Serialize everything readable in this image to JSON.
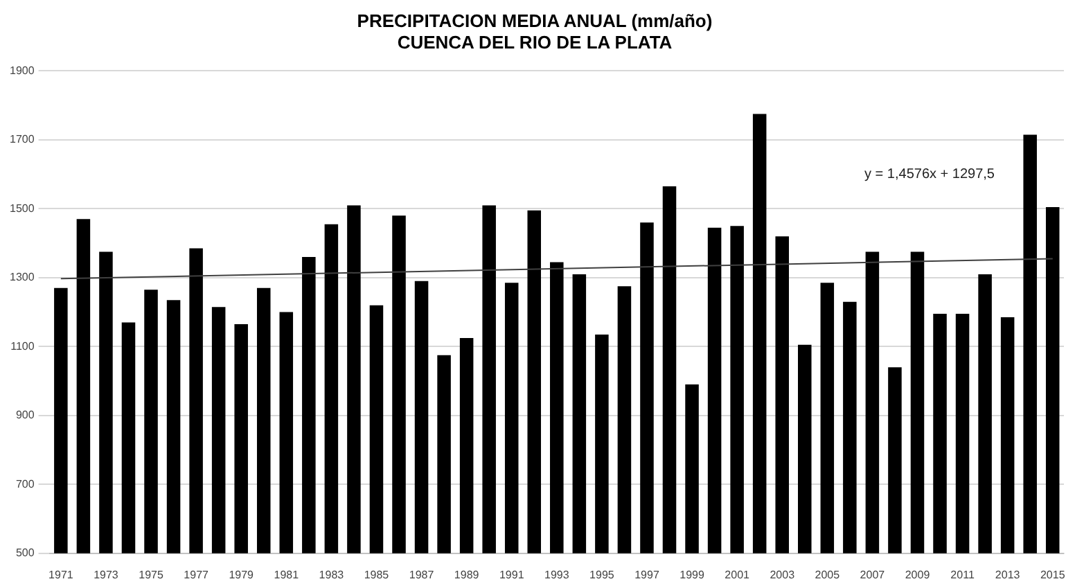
{
  "chart_data": {
    "type": "bar",
    "title": "PRECIPITACION MEDIA ANUAL (mm/año)",
    "subtitle": "CUENCA DEL RIO DE LA PLATA",
    "categories": [
      "1971",
      null,
      "1973",
      null,
      "1975",
      null,
      "1977",
      null,
      "1979",
      null,
      "1981",
      null,
      "1983",
      null,
      "1985",
      null,
      "1987",
      null,
      "1989",
      null,
      "1991",
      null,
      "1993",
      null,
      "1995",
      null,
      "1997",
      null,
      "1999",
      null,
      "2001",
      null,
      "2003",
      null,
      "2005",
      null,
      "2007",
      null,
      "2009",
      null,
      "2011",
      null,
      "2013",
      null,
      "2015"
    ],
    "series": [
      {
        "color": "#000000",
        "values": [
          1270,
          1470,
          1375,
          1170,
          1265,
          1235,
          1385,
          1215,
          1165,
          1270,
          1200,
          1360,
          1455,
          1510,
          1220,
          1480,
          1290,
          1075,
          1125,
          1510,
          1285,
          1495,
          1345,
          1310,
          1135,
          1275,
          1460,
          1565,
          990,
          1445,
          1450,
          1775,
          1420,
          1105,
          1285,
          1230,
          1375,
          1040,
          1375,
          1195,
          1195,
          1310,
          1185,
          1715,
          1505
        ]
      },
      {
        "type": "line",
        "color": "#404040",
        "values": [
          1297,
          null,
          null,
          null,
          null,
          null,
          null,
          null,
          null,
          null,
          null,
          null,
          null,
          null,
          null,
          null,
          null,
          null,
          null,
          null,
          null,
          null,
          null,
          null,
          null,
          null,
          null,
          null,
          null,
          null,
          null,
          null,
          null,
          null,
          null,
          null,
          null,
          null,
          null,
          null,
          null,
          null,
          null,
          null,
          1355
        ]
      }
    ],
    "ylim": [
      500,
      1900
    ],
    "yticks": [
      500,
      700,
      900,
      1100,
      1300,
      1500,
      1700,
      1900
    ],
    "grid": "y",
    "legend": false,
    "annotations": [
      "y = 1,4576x + 1297,5"
    ]
  }
}
